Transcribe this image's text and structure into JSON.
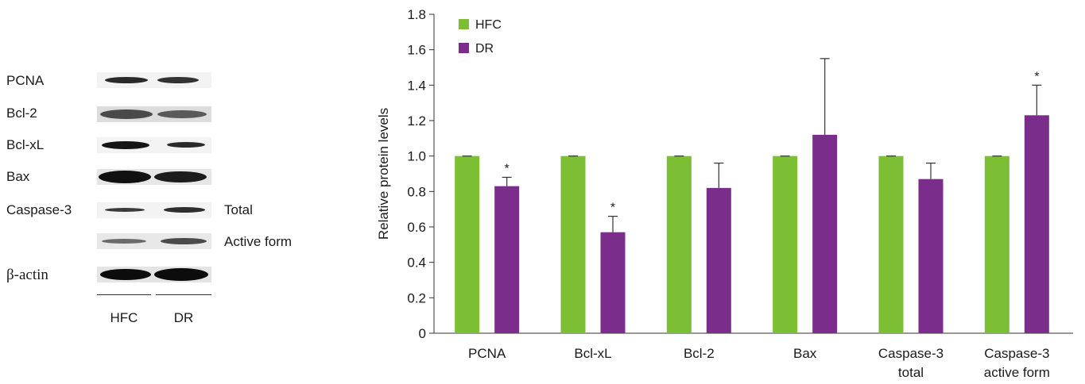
{
  "blot": {
    "rows": [
      "PCNA",
      "Bcl-2",
      "Bcl-xL",
      "Bax",
      "Caspase-3",
      "",
      "β-actin"
    ],
    "side_labels": [
      "Total",
      "Active form"
    ],
    "groups": [
      "HFC",
      "DR"
    ]
  },
  "chart_data": {
    "type": "bar",
    "categories": [
      "PCNA",
      "Bcl-xL",
      "Bcl-2",
      "Bax",
      "Caspase-3 total",
      "Caspase-3 active form"
    ],
    "category_lines": [
      [
        "PCNA"
      ],
      [
        "Bcl-xL"
      ],
      [
        "Bcl-2"
      ],
      [
        "Bax"
      ],
      [
        "Caspase-3",
        "total"
      ],
      [
        "Caspase-3",
        "active form"
      ]
    ],
    "series": [
      {
        "name": "HFC",
        "color": "#7dbf34",
        "values": [
          1.0,
          1.0,
          1.0,
          1.0,
          1.0,
          1.0
        ],
        "errors": [
          0,
          0,
          0,
          0,
          0,
          0
        ]
      },
      {
        "name": "DR",
        "color": "#7b2d8b",
        "values": [
          0.83,
          0.57,
          0.82,
          1.12,
          0.87,
          1.23
        ],
        "errors": [
          0.05,
          0.09,
          0.14,
          0.43,
          0.09,
          0.17
        ]
      }
    ],
    "significance": [
      {
        "series": "DR",
        "category": "PCNA",
        "mark": "*"
      },
      {
        "series": "DR",
        "category": "Bcl-xL",
        "mark": "*"
      },
      {
        "series": "DR",
        "category": "Caspase-3 active form",
        "mark": "*"
      }
    ],
    "ylabel": "Relative protein levels",
    "ylim": [
      0,
      1.8
    ],
    "yticks": [
      "0",
      "0.2",
      "0.4",
      "0.6",
      "0.8",
      "1.0",
      "1.2",
      "1.4",
      "1.6",
      "1.8"
    ],
    "legend_position": "top-left",
    "grid": false
  }
}
